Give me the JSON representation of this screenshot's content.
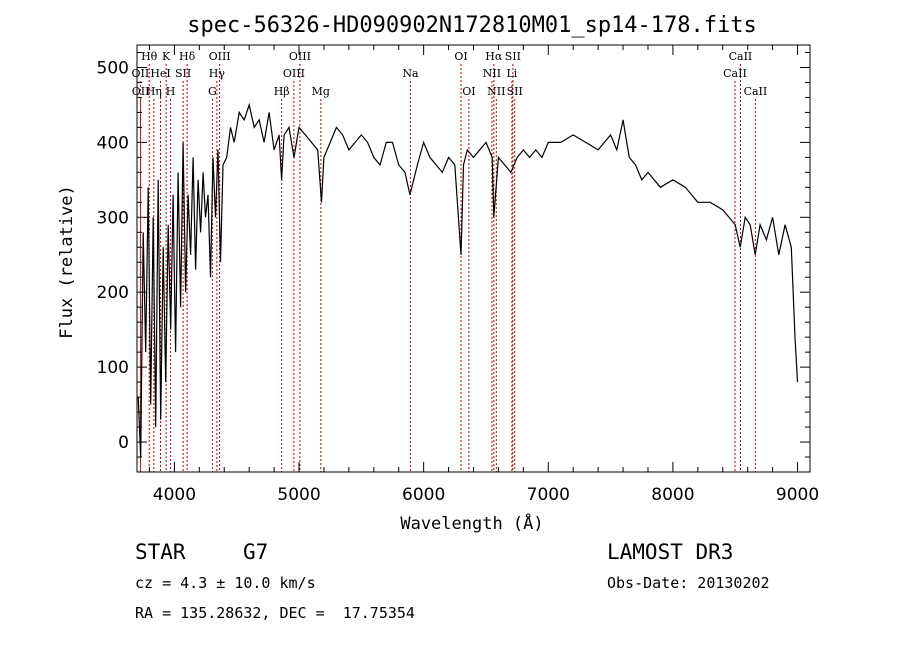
{
  "chart_data": {
    "type": "line",
    "title": "spec-56326-HD090902N172810M01_sp14-178.fits",
    "xlabel": "Wavelength (Å)",
    "ylabel": "Flux (relative)",
    "xlim": [
      3700,
      9100
    ],
    "ylim": [
      -40,
      530
    ],
    "x_ticks": [
      4000,
      5000,
      6000,
      7000,
      8000,
      9000
    ],
    "y_ticks": [
      0,
      100,
      200,
      300,
      400,
      500
    ],
    "grid": false,
    "series": [
      {
        "x": [
          3710,
          3730,
          3750,
          3770,
          3790,
          3810,
          3830,
          3850,
          3870,
          3890,
          3910,
          3930,
          3950,
          3970,
          3990,
          4010,
          4030,
          4050,
          4070,
          4090,
          4110,
          4130,
          4150,
          4170,
          4190,
          4210,
          4230,
          4250,
          4270,
          4290,
          4310,
          4330,
          4350,
          4370,
          4390,
          4420,
          4450,
          4480,
          4520,
          4560,
          4600,
          4640,
          4680,
          4720,
          4760,
          4800,
          4840,
          4860,
          4880,
          4920,
          4960,
          5000,
          5050,
          5100,
          5150,
          5180,
          5200,
          5250,
          5300,
          5350,
          5400,
          5450,
          5500,
          5550,
          5600,
          5650,
          5700,
          5750,
          5800,
          5850,
          5890,
          5950,
          6000,
          6050,
          6100,
          6150,
          6200,
          6250,
          6300,
          6320,
          6350,
          6400,
          6450,
          6500,
          6550,
          6563,
          6600,
          6650,
          6700,
          6750,
          6800,
          6850,
          6900,
          6950,
          7000,
          7100,
          7200,
          7300,
          7400,
          7500,
          7550,
          7600,
          7620,
          7650,
          7700,
          7750,
          7800,
          7900,
          8000,
          8100,
          8200,
          8300,
          8400,
          8450,
          8500,
          8540,
          8580,
          8620,
          8660,
          8700,
          8750,
          8800,
          8850,
          8900,
          8950,
          8980,
          9000
        ],
        "y": [
          60,
          -20,
          280,
          120,
          340,
          50,
          300,
          20,
          350,
          30,
          260,
          80,
          290,
          150,
          330,
          120,
          360,
          180,
          400,
          200,
          330,
          250,
          380,
          230,
          350,
          280,
          360,
          300,
          330,
          220,
          380,
          300,
          390,
          240,
          370,
          380,
          420,
          400,
          440,
          430,
          450,
          420,
          430,
          400,
          440,
          390,
          410,
          350,
          410,
          420,
          380,
          420,
          410,
          400,
          390,
          320,
          380,
          400,
          420,
          410,
          390,
          400,
          410,
          400,
          380,
          370,
          400,
          400,
          370,
          360,
          330,
          370,
          400,
          380,
          370,
          360,
          380,
          370,
          250,
          370,
          390,
          380,
          390,
          400,
          380,
          300,
          380,
          370,
          360,
          380,
          390,
          380,
          390,
          380,
          400,
          400,
          410,
          400,
          390,
          410,
          390,
          430,
          410,
          380,
          370,
          350,
          360,
          340,
          350,
          340,
          320,
          320,
          310,
          300,
          290,
          260,
          300,
          290,
          250,
          290,
          270,
          300,
          250,
          290,
          260,
          140,
          80
        ]
      }
    ],
    "line_markers": [
      {
        "label": "Hθ",
        "wave": 3798,
        "row": 0,
        "color": "#c00000"
      },
      {
        "label": "OII",
        "wave": 3727,
        "row": 1,
        "color": "#c00000"
      },
      {
        "label": "OII",
        "wave": 3729,
        "row": 2,
        "color": "#c00000"
      },
      {
        "label": "HeI",
        "wave": 3889,
        "row": 1,
        "color": "#c00000"
      },
      {
        "label": "Hη",
        "wave": 3835,
        "row": 2,
        "color": "#c00000"
      },
      {
        "label": "K",
        "wave": 3934,
        "row": 0,
        "color": "#c00000"
      },
      {
        "label": "SII",
        "wave": 4070,
        "row": 1,
        "color": "#c00000"
      },
      {
        "label": "H",
        "wave": 3969,
        "row": 2,
        "color": "#c00000"
      },
      {
        "label": "Hδ",
        "wave": 4102,
        "row": 0,
        "color": "#c00000"
      },
      {
        "label": "OIII",
        "wave": 4363,
        "row": 0,
        "color": "#c00000"
      },
      {
        "label": "Hγ",
        "wave": 4341,
        "row": 1,
        "color": "#c00000"
      },
      {
        "label": "G",
        "wave": 4305,
        "row": 2,
        "color": "#c00000"
      },
      {
        "label": "Hβ",
        "wave": 4861,
        "row": 2,
        "color": "#c00000"
      },
      {
        "label": "OIII",
        "wave": 5007,
        "row": 0,
        "color": "#c00000"
      },
      {
        "label": "OIII",
        "wave": 4959,
        "row": 1,
        "color": "#c00000"
      },
      {
        "label": "Mg",
        "wave": 5175,
        "row": 2,
        "color": "#c00000"
      },
      {
        "label": "Na",
        "wave": 5894,
        "row": 1,
        "color": "#c00000"
      },
      {
        "label": "OI",
        "wave": 6300,
        "row": 0,
        "color": "#c00000"
      },
      {
        "label": "OI",
        "wave": 6363,
        "row": 2,
        "color": "#c00000"
      },
      {
        "label": "Hα",
        "wave": 6563,
        "row": 0,
        "color": "#c00000"
      },
      {
        "label": "NII",
        "wave": 6548,
        "row": 1,
        "color": "#c00000"
      },
      {
        "label": "NII",
        "wave": 6583,
        "row": 2,
        "color": "#c00000"
      },
      {
        "label": "SII",
        "wave": 6716,
        "row": 0,
        "color": "#c00000"
      },
      {
        "label": "Li",
        "wave": 6708,
        "row": 1,
        "color": "#c00000"
      },
      {
        "label": "SII",
        "wave": 6731,
        "row": 2,
        "color": "#c00000"
      },
      {
        "label": "CaII",
        "wave": 8542,
        "row": 0,
        "color": "#c00000"
      },
      {
        "label": "CaII",
        "wave": 8498,
        "row": 1,
        "color": "#c00000"
      },
      {
        "label": "CaII",
        "wave": 8662,
        "row": 2,
        "color": "#c00000"
      }
    ],
    "line_color": "#000000",
    "marker_color": "#c00000"
  },
  "info": {
    "class": "STAR",
    "subclass": "G7",
    "survey": "LAMOST DR3",
    "cz": "cz = 4.3 ± 10.0 km/s",
    "obs_date": "Obs-Date: 20130202",
    "coords": "RA = 135.28632, DEC =  17.75354"
  }
}
